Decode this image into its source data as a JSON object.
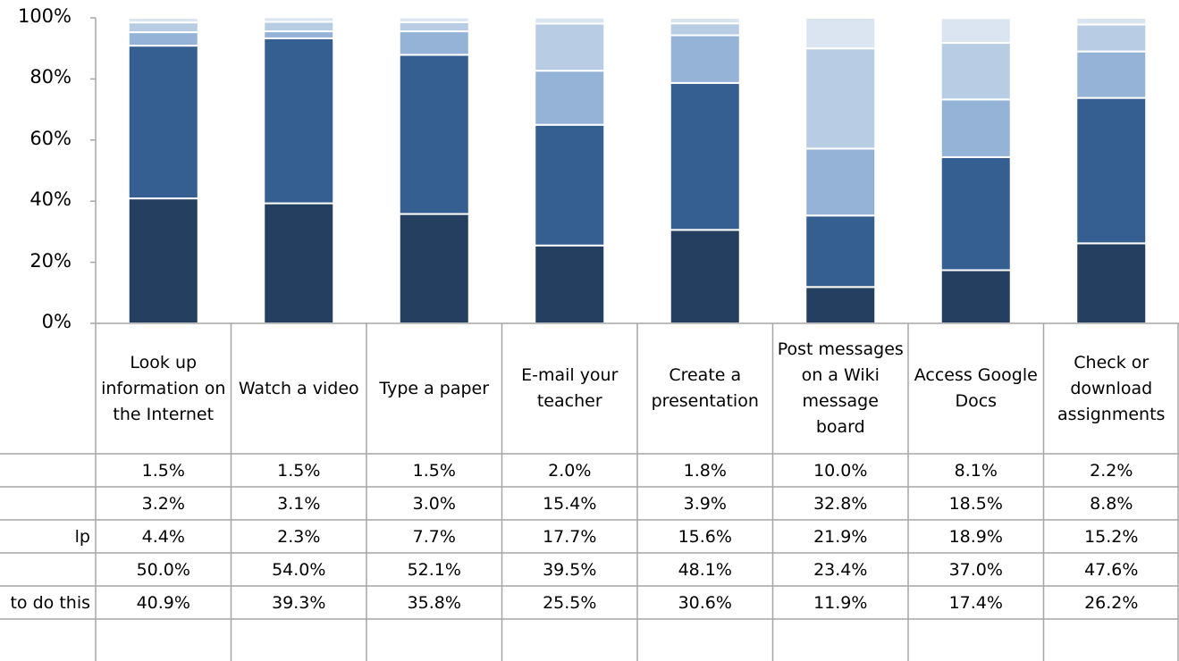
{
  "chart_data": {
    "type": "stacked_bar",
    "categories": [
      "Look up information on the Internet",
      "Watch a video",
      "Type a paper",
      "E-mail your teacher",
      "Create a presentation",
      "Post messages on a Wiki message board",
      "Access Google Docs",
      "Check or download assignments"
    ],
    "series": [
      {
        "name": null,
        "color": "#dbe5f1",
        "values": [
          1.5,
          1.5,
          1.5,
          2.0,
          1.8,
          10.0,
          8.1,
          2.2
        ],
        "value_labels": [
          "1.5%",
          "1.5%",
          "1.5%",
          "2.0%",
          "1.8%",
          "10.0%",
          "8.1%",
          "2.2%"
        ]
      },
      {
        "name": null,
        "color": "#b8cce4",
        "values": [
          3.2,
          3.1,
          3.0,
          15.4,
          3.9,
          32.8,
          18.5,
          8.8
        ],
        "value_labels": [
          "3.2%",
          "3.1%",
          "3.0%",
          "15.4%",
          "3.9%",
          "32.8%",
          "18.5%",
          "8.8%"
        ]
      },
      {
        "name": "lp",
        "color": "#95b3d7",
        "values": [
          4.4,
          2.3,
          7.7,
          17.7,
          15.6,
          21.9,
          18.9,
          15.2
        ],
        "value_labels": [
          "4.4%",
          "2.3%",
          "7.7%",
          "17.7%",
          "15.6%",
          "21.9%",
          "18.9%",
          "15.2%"
        ]
      },
      {
        "name": null,
        "color": "#355f91",
        "values": [
          50.0,
          54.0,
          52.1,
          39.5,
          48.1,
          23.4,
          37.0,
          47.6
        ],
        "value_labels": [
          "50.0%",
          "54.0%",
          "52.1%",
          "39.5%",
          "48.1%",
          "23.4%",
          "37.0%",
          "47.6%"
        ]
      },
      {
        "name": "to do this",
        "color": "#253f60",
        "values": [
          40.9,
          39.3,
          35.8,
          25.5,
          30.6,
          11.9,
          17.4,
          26.2
        ],
        "value_labels": [
          "40.9%",
          "39.3%",
          "35.8%",
          "25.5%",
          "30.6%",
          "11.9%",
          "17.4%",
          "26.2%"
        ]
      }
    ],
    "ylim": [
      0,
      100
    ],
    "yticks": [
      {
        "value": 0,
        "label": "0%"
      },
      {
        "value": 20,
        "label": "20%"
      },
      {
        "value": 40,
        "label": "40%"
      },
      {
        "value": 60,
        "label": "60%"
      },
      {
        "value": 80,
        "label": "80%"
      },
      {
        "value": 100,
        "label": "100%"
      }
    ]
  }
}
